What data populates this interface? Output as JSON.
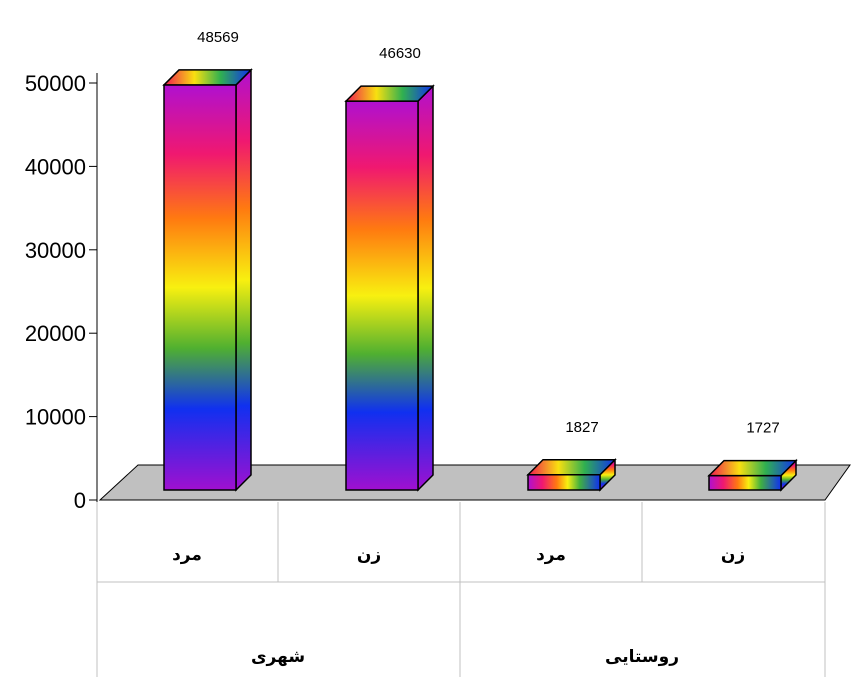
{
  "chart_data": {
    "type": "bar",
    "groups": [
      {
        "label": "شهری",
        "categories": [
          "مرد",
          "زن"
        ],
        "values": [
          48569,
          46630
        ]
      },
      {
        "label": "روستایی",
        "categories": [
          "مرد",
          "زن"
        ],
        "values": [
          1827,
          1727
        ]
      }
    ],
    "data_labels": [
      "48569",
      "46630",
      "1827",
      "1727"
    ],
    "yticks": [
      "0",
      "10000",
      "20000",
      "30000",
      "40000",
      "50000"
    ],
    "ylim": [
      0,
      50000
    ],
    "grid": false,
    "style": "3d-column-rainbow-gradient",
    "floor_color": "#c0c0c0"
  }
}
